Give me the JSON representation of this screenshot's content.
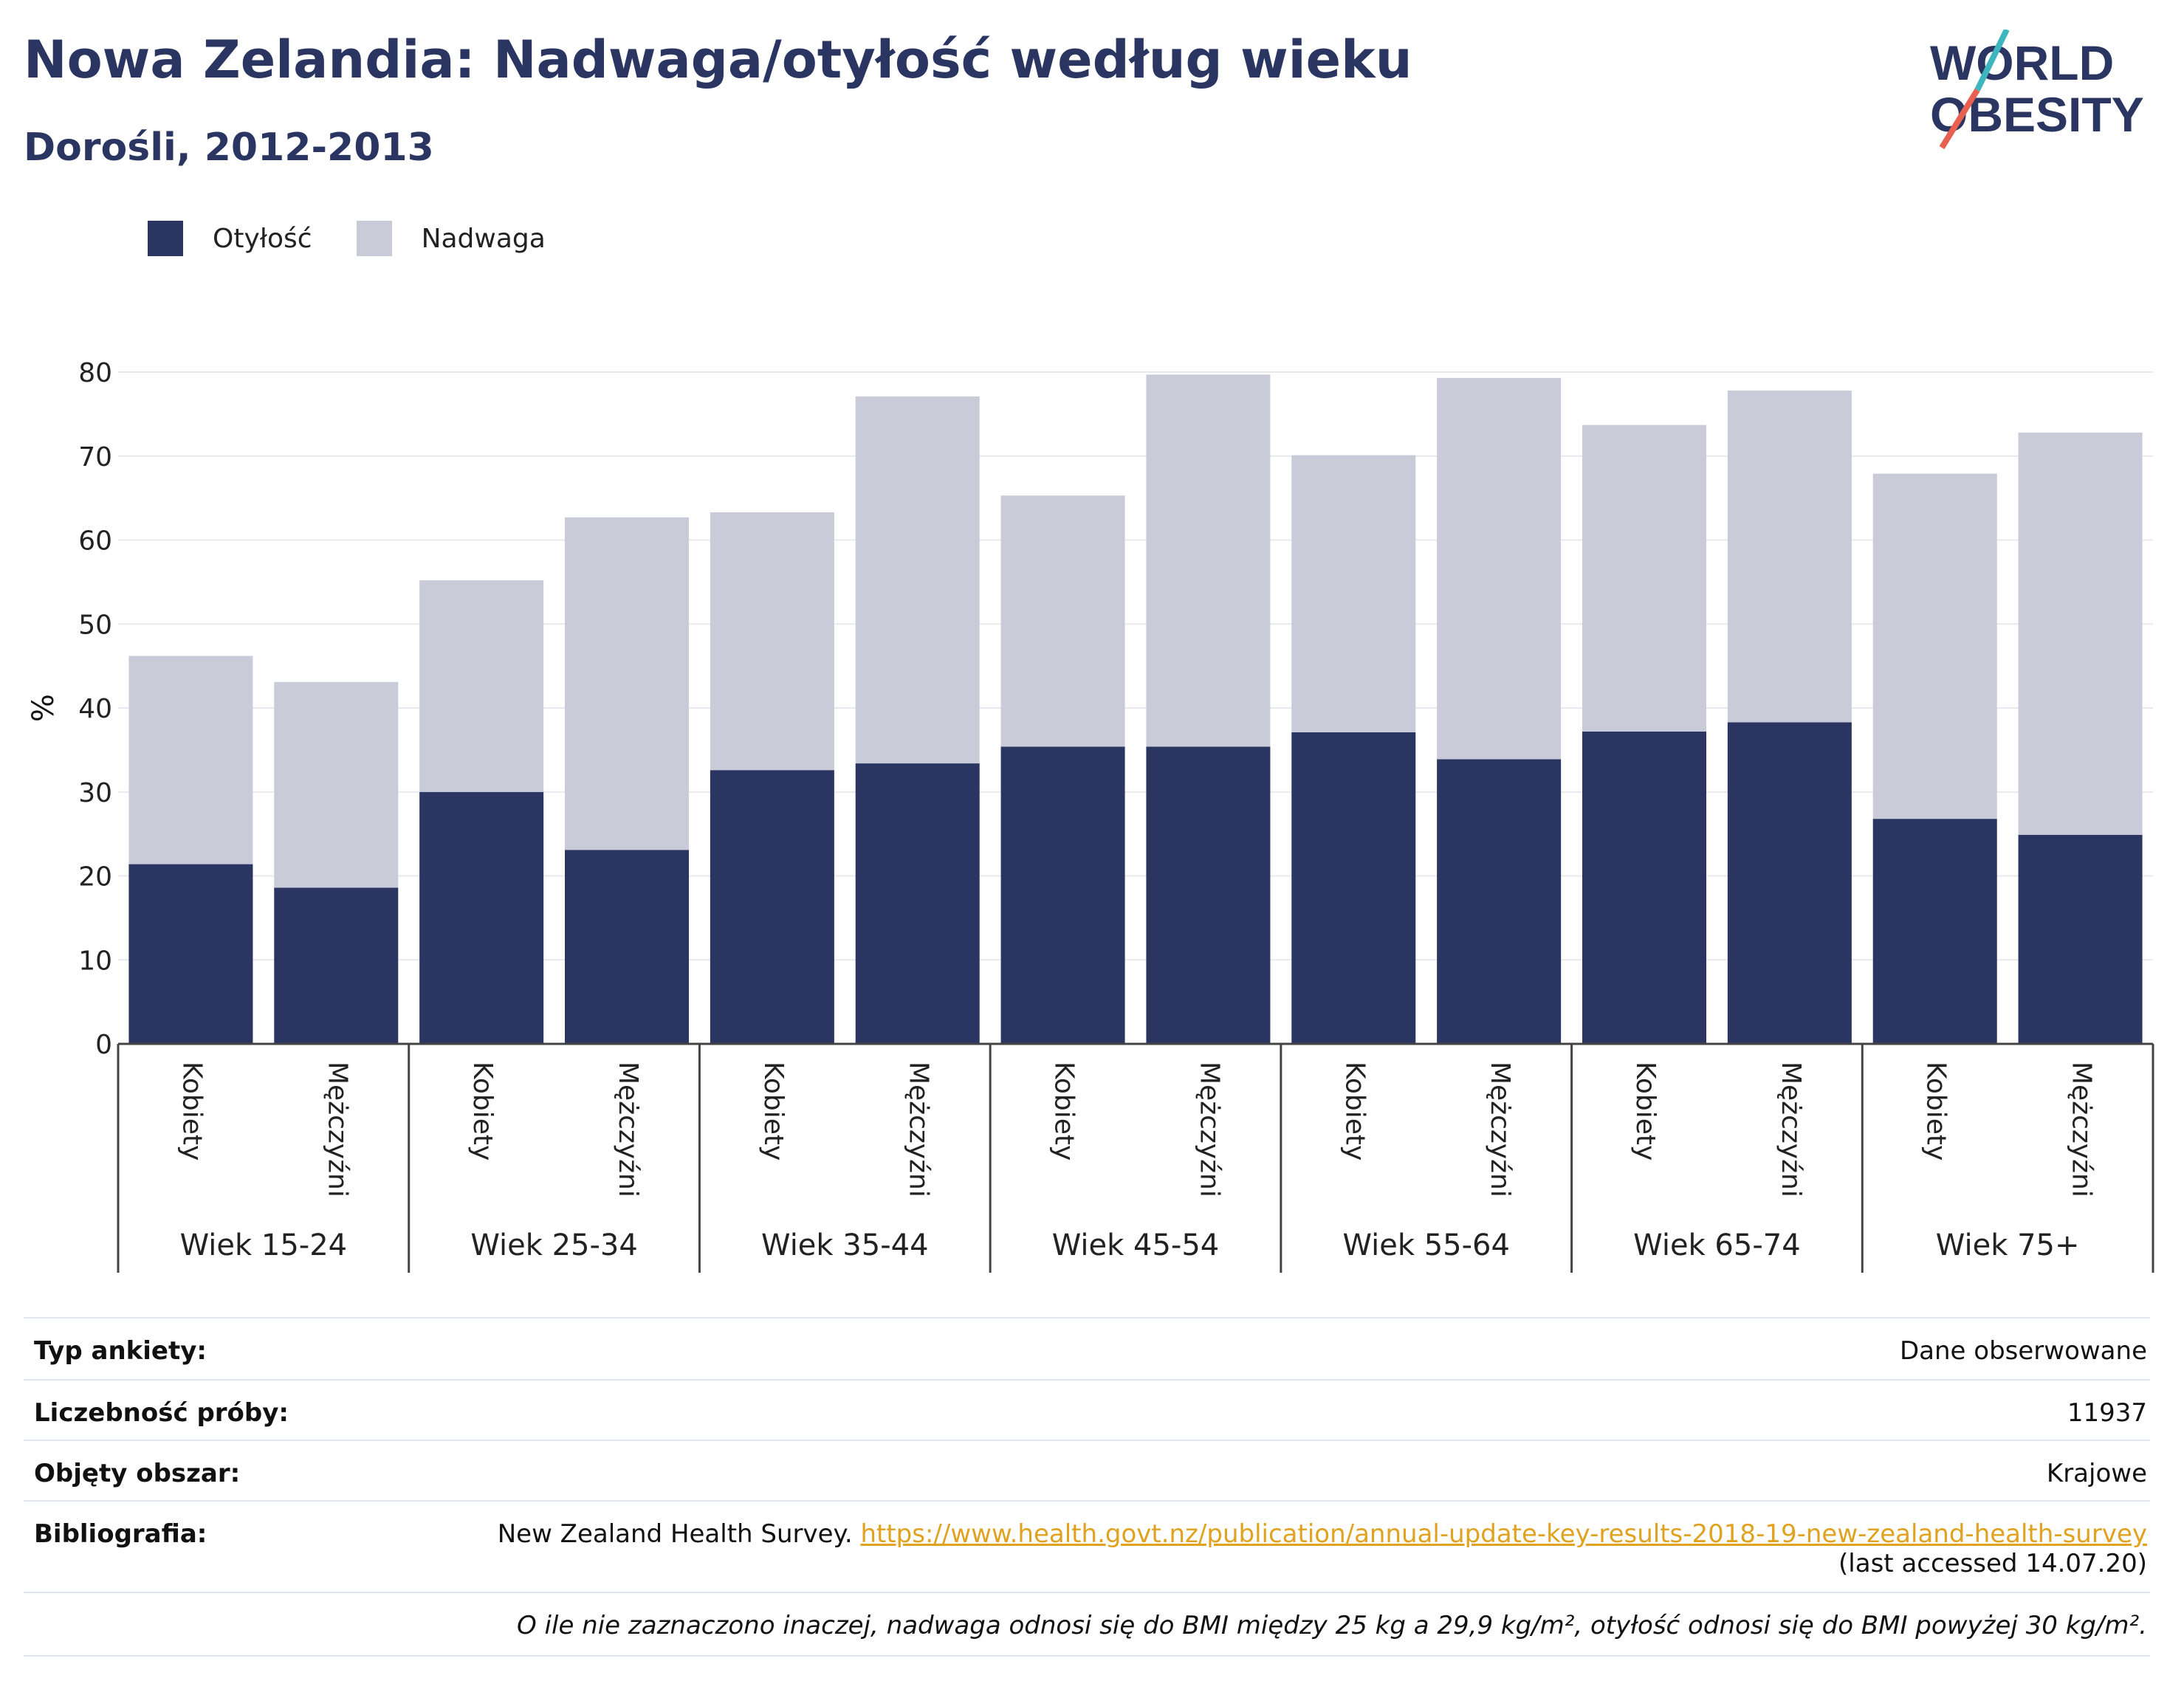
{
  "header": {
    "title": "Nowa Zelandia: Nadwaga/otyłość według wieku",
    "subtitle": "Dorośli, 2012-2013"
  },
  "logo": {
    "line1": "WORLD",
    "line2": "OBESITY"
  },
  "colors": {
    "obesity": "#2a3562",
    "overweight": "#c9ccd8",
    "accent_teal": "#3fb6bd",
    "accent_red": "#e8604f"
  },
  "chart_data": {
    "type": "bar",
    "stacked": true,
    "ylabel": "%",
    "ylim": [
      0,
      80
    ],
    "yticks": [
      0,
      10,
      20,
      30,
      40,
      50,
      60,
      70,
      80
    ],
    "grid": true,
    "legend_position": "top-left",
    "groups": [
      "Wiek 15-24",
      "Wiek 25-34",
      "Wiek 35-44",
      "Wiek 45-54",
      "Wiek 55-64",
      "Wiek 65-74",
      "Wiek 75+"
    ],
    "subcategories": [
      "Kobiety",
      "Mężczyźni"
    ],
    "series": [
      {
        "name": "Otyłość",
        "values": [
          21.4,
          18.6,
          30.0,
          23.1,
          32.6,
          33.4,
          35.4,
          35.4,
          37.1,
          33.9,
          37.2,
          38.3,
          26.8,
          24.9
        ]
      },
      {
        "name": "Nadwaga",
        "values": [
          24.8,
          24.5,
          25.2,
          39.6,
          30.7,
          43.7,
          29.9,
          44.3,
          33.0,
          45.4,
          36.5,
          39.5,
          41.1,
          47.9
        ]
      }
    ]
  },
  "info": {
    "survey_type_label": "Typ ankiety:",
    "survey_type_value": "Dane obserwowane",
    "sample_label": "Liczebność próby:",
    "sample_value": "11937",
    "area_label": "Objęty obszar:",
    "area_value": "Krajowe",
    "biblio_label": "Bibliografia:",
    "biblio_text": "New Zealand Health Survey.",
    "biblio_url": "https://www.health.govt.nz/publication/annual-update-key-results-2018-19-new-zealand-health-survey",
    "biblio_accessed": "(last accessed 14.07.20)",
    "note": "O ile nie zaznaczono inaczej, nadwaga odnosi się do BMI między 25 kg a 29,9 kg/m², otyłość odnosi się do BMI powyżej 30 kg/m²."
  }
}
